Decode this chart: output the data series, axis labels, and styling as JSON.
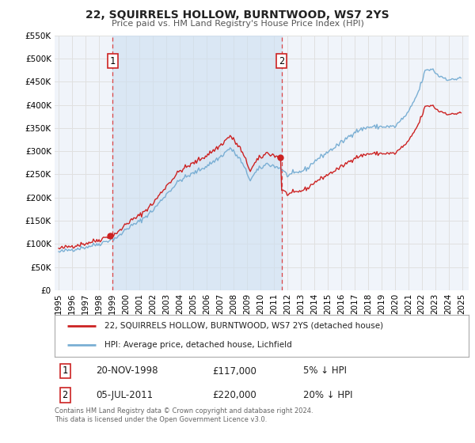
{
  "title": "22, SQUIRRELS HOLLOW, BURNTWOOD, WS7 2YS",
  "subtitle": "Price paid vs. HM Land Registry's House Price Index (HPI)",
  "legend_line1": "22, SQUIRRELS HOLLOW, BURNTWOOD, WS7 2YS (detached house)",
  "legend_line2": "HPI: Average price, detached house, Lichfield",
  "transaction1_date": "20-NOV-1998",
  "transaction1_price": "£117,000",
  "transaction1_hpi": "5% ↓ HPI",
  "transaction2_date": "05-JUL-2011",
  "transaction2_price": "£220,000",
  "transaction2_hpi": "20% ↓ HPI",
  "footer": "Contains HM Land Registry data © Crown copyright and database right 2024.\nThis data is licensed under the Open Government Licence v3.0.",
  "hpi_color": "#7aafd4",
  "price_color": "#cc2222",
  "dot_color": "#cc2222",
  "bg_color": "#ffffff",
  "plot_bg_color": "#f0f4fa",
  "grid_color": "#e0e0e0",
  "vline_color": "#dd3333",
  "vline_x1": 1999.0,
  "vline_x2": 2011.58,
  "ylim_min": 0,
  "ylim_max": 550000,
  "xlim_min": 1994.7,
  "xlim_max": 2025.5,
  "yticks": [
    0,
    50000,
    100000,
    150000,
    200000,
    250000,
    300000,
    350000,
    400000,
    450000,
    500000,
    550000
  ],
  "ytick_labels": [
    "£0",
    "£50K",
    "£100K",
    "£150K",
    "£200K",
    "£250K",
    "£300K",
    "£350K",
    "£400K",
    "£450K",
    "£500K",
    "£550K"
  ],
  "xtick_years": [
    1995,
    1996,
    1997,
    1998,
    1999,
    2000,
    2001,
    2002,
    2003,
    2004,
    2005,
    2006,
    2007,
    2008,
    2009,
    2010,
    2011,
    2012,
    2013,
    2014,
    2015,
    2016,
    2017,
    2018,
    2019,
    2020,
    2021,
    2022,
    2023,
    2024,
    2025
  ]
}
